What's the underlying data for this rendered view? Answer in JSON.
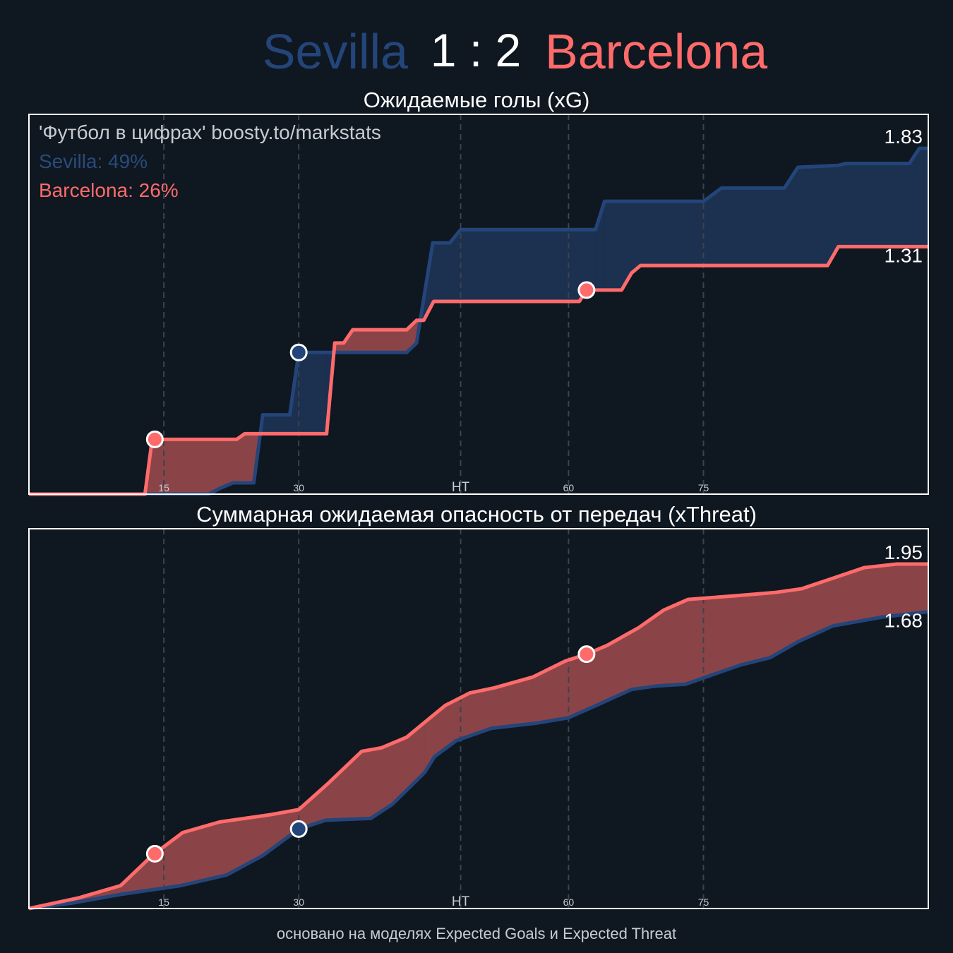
{
  "header": {
    "score": "1 : 2"
  },
  "chart_data": [
    {
      "type": "line",
      "title": "Ожидаемые голы (xG)",
      "annotations": [
        {
          "text": "'Футбол в цифрах' boosty.to/markstats",
          "color": "#c8ccd0"
        },
        {
          "text": "Sevilla: 49%",
          "color": "#2a4a7c"
        },
        {
          "text": "Barcelona: 26%",
          "color": "#ff6b6b"
        }
      ],
      "xlim": [
        0,
        100
      ],
      "xticks": [
        15,
        30,
        {
          "value": 48,
          "label": "HT"
        },
        60,
        75
      ],
      "ylim": [
        0,
        2.01
      ],
      "grid": true,
      "series": [
        {
          "name": "Sevilla",
          "color": "#24457a",
          "fill": "#1c3050",
          "x": [
            0,
            20,
            21.2,
            22.7,
            25,
            26,
            29,
            30,
            33,
            42,
            43.1,
            44.9,
            46.8,
            48,
            63,
            64,
            75,
            77,
            84,
            85.5,
            90,
            90.8,
            97.9,
            99,
            100
          ],
          "values": [
            0,
            0,
            0.03,
            0.06,
            0.06,
            0.42,
            0.42,
            0.75,
            0.75,
            0.75,
            0.8,
            1.33,
            1.33,
            1.4,
            1.4,
            1.55,
            1.55,
            1.62,
            1.62,
            1.73,
            1.74,
            1.75,
            1.75,
            1.83,
            1.83
          ],
          "goals": {
            "x": [
              30
            ],
            "values": [
              0.75
            ]
          }
        },
        {
          "name": "Barcelona",
          "color": "#ff6b6b",
          "fill": "#8a4448",
          "x": [
            0,
            12.9,
            13.7,
            23.1,
            24,
            33.1,
            34,
            35,
            36,
            42,
            43.1,
            43.9,
            45,
            61.2,
            62,
            65.9,
            67,
            68,
            88.8,
            90,
            100
          ],
          "values": [
            0,
            0,
            0.29,
            0.29,
            0.32,
            0.32,
            0.8,
            0.8,
            0.87,
            0.87,
            0.92,
            0.92,
            1.02,
            1.02,
            1.08,
            1.08,
            1.17,
            1.21,
            1.21,
            1.31,
            1.31
          ],
          "goals": {
            "x": [
              14,
              62
            ],
            "values": [
              0.29,
              1.08
            ]
          }
        }
      ]
    },
    {
      "type": "line",
      "title": "Суммарная ожидаемая опасность от передач (xThreat)",
      "xlim": [
        0,
        100
      ],
      "xticks": [
        15,
        30,
        {
          "value": 48,
          "label": "HT"
        },
        60,
        75
      ],
      "ylim": [
        0,
        2.15
      ],
      "grid": true,
      "series": [
        {
          "color": "#24457a",
          "fill": "#1c3050",
          "x": [
            0,
            4.7,
            10.2,
            16.9,
            22,
            26,
            30,
            33,
            38,
            40.4,
            44,
            45.1,
            47.5,
            51.4,
            56.5,
            60,
            63.1,
            67,
            69.8,
            73,
            79.2,
            82.4,
            85.5,
            89.4,
            94.9,
            100
          ],
          "values": [
            0,
            0.03,
            0.08,
            0.13,
            0.19,
            0.3,
            0.45,
            0.5,
            0.51,
            0.59,
            0.77,
            0.86,
            0.95,
            1.02,
            1.05,
            1.08,
            1.15,
            1.24,
            1.26,
            1.27,
            1.38,
            1.42,
            1.51,
            1.6,
            1.65,
            1.68
          ],
          "goals": {
            "x": [
              30
            ],
            "values": [
              0.45
            ]
          }
        },
        {
          "color": "#ff6b6b",
          "fill": "#8a4448",
          "x": [
            0,
            5.5,
            10.2,
            13.7,
            17.1,
            21.2,
            26.7,
            30,
            33.3,
            37,
            39.2,
            42,
            43.9,
            46.3,
            49,
            51.8,
            56,
            59.6,
            62,
            64.3,
            67.8,
            70.6,
            73.3,
            78.4,
            83.1,
            85.9,
            89.4,
            92.9,
            96.5,
            100
          ],
          "values": [
            0,
            0.06,
            0.13,
            0.3,
            0.43,
            0.49,
            0.53,
            0.56,
            0.71,
            0.89,
            0.91,
            0.97,
            1.05,
            1.15,
            1.22,
            1.25,
            1.31,
            1.4,
            1.44,
            1.49,
            1.59,
            1.69,
            1.75,
            1.77,
            1.79,
            1.81,
            1.87,
            1.93,
            1.95,
            1.95
          ],
          "goals": {
            "x": [
              14,
              62
            ],
            "values": [
              0.31,
              1.44
            ]
          }
        }
      ]
    }
  ],
  "footer": "основано на моделях Expected Goals и Expected Threat"
}
